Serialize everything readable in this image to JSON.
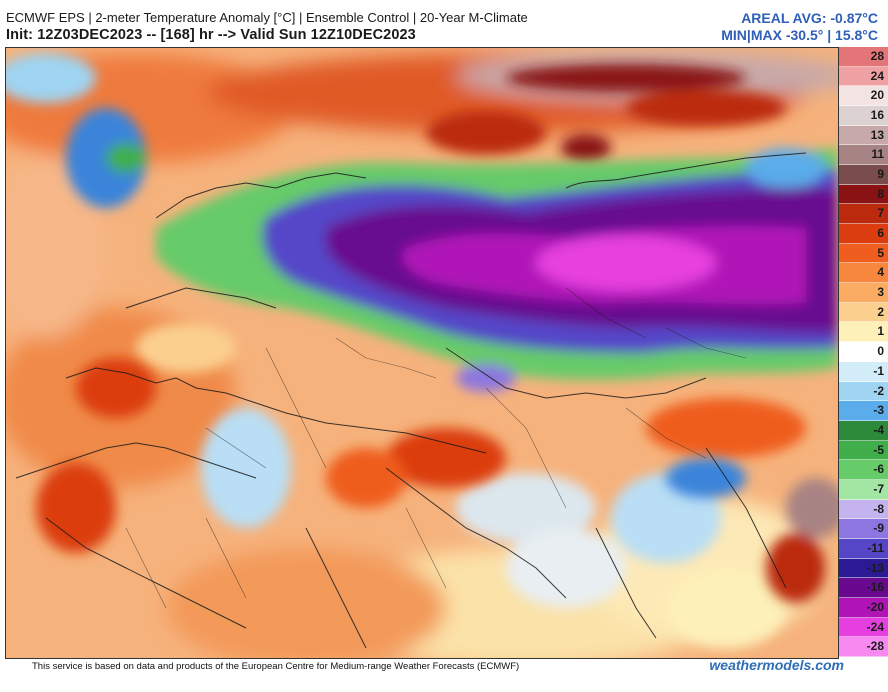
{
  "header": {
    "title": "ECMWF EPS | 2-meter Temperature Anomaly [°C] | Ensemble Control | 20-Year M-Climate",
    "init": "Init: 12Z03DEC2023 -- [168] hr --> Valid Sun 12Z10DEC2023",
    "areal_avg": "AREAL AVG: -0.87°C",
    "min_max": "MIN|MAX -30.5° | 15.8°C"
  },
  "colorbar": {
    "labels": [
      "28",
      "24",
      "20",
      "16",
      "13",
      "11",
      "9",
      "8",
      "7",
      "6",
      "5",
      "4",
      "3",
      "2",
      "1",
      "0",
      "-1",
      "-2",
      "-3",
      "-4",
      "-5",
      "-6",
      "-7",
      "-8",
      "-9",
      "-11",
      "-13",
      "-16",
      "-20",
      "-24",
      "-28"
    ],
    "colors": [
      "#e37579",
      "#f0a1a4",
      "#f4e3e3",
      "#ddd2d2",
      "#c7a9a9",
      "#a88383",
      "#7a4c4c",
      "#8a1212",
      "#bb2a0d",
      "#db3d10",
      "#ef5d1f",
      "#f7873d",
      "#f9ac62",
      "#fbd08f",
      "#fdf0b8",
      "#ffffff",
      "#d2ecf8",
      "#9fd4f2",
      "#5aacea",
      "#2d8a3a",
      "#3fae4b",
      "#66cb69",
      "#a3e6a3",
      "#c4b3ee",
      "#8d76e0",
      "#5546c8",
      "#2a1b94",
      "#68098f",
      "#b014b7",
      "#e63fdf",
      "#f68af1"
    ]
  },
  "footer": {
    "credit": "This service is based on data and products of the European Centre for Medium-range Weather Forecasts (ECMWF)",
    "brand": "weathermodels.com"
  }
}
